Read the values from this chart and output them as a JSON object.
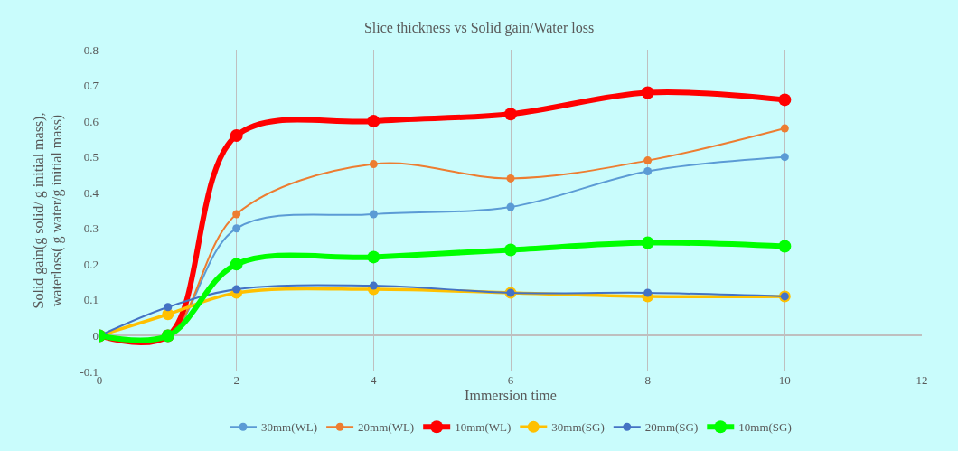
{
  "chart_data": {
    "type": "line",
    "title": "Slice thickness vs Solid gain/Water loss",
    "xlabel": "Immersion time",
    "ylabel": "Solid gain(g solid/ g initial mass),\nwaterloss( g water/g initial mass)",
    "x": [
      0,
      1,
      2,
      4,
      6,
      8,
      10
    ],
    "series": [
      {
        "name": "30mm(WL)",
        "color": "#5b9bd5",
        "values": [
          0,
          0,
          0.3,
          0.34,
          0.36,
          0.46,
          0.5
        ]
      },
      {
        "name": "20mm(WL)",
        "color": "#ed7d31",
        "values": [
          0,
          0,
          0.34,
          0.48,
          0.44,
          0.49,
          0.58
        ]
      },
      {
        "name": "10mm(WL)",
        "color": "#ff0000",
        "values": [
          0,
          0,
          0.56,
          0.6,
          0.62,
          0.68,
          0.66
        ]
      },
      {
        "name": "30mm(SG)",
        "color": "#ffc000",
        "values": [
          0,
          0.06,
          0.12,
          0.13,
          0.12,
          0.11,
          0.11
        ]
      },
      {
        "name": "20mm(SG)",
        "color": "#4472c4",
        "values": [
          0,
          0.08,
          0.13,
          0.14,
          0.12,
          0.12,
          0.11
        ]
      },
      {
        "name": "10mm(SG)",
        "color": "#00ff00",
        "values": [
          0,
          0,
          0.2,
          0.22,
          0.24,
          0.26,
          0.25
        ]
      }
    ],
    "xlim": [
      0,
      12
    ],
    "xticks": [
      0,
      2,
      4,
      6,
      8,
      10,
      12
    ],
    "ylim": [
      -0.1,
      0.8
    ],
    "yticks": [
      -0.1,
      0,
      0.1,
      0.2,
      0.3,
      0.4,
      0.5,
      0.6,
      0.7,
      0.8
    ],
    "grid": "x",
    "legend": "bottom",
    "marker": "circle"
  }
}
